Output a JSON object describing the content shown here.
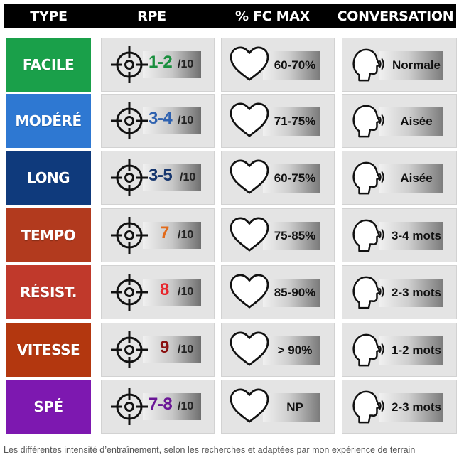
{
  "header": {
    "type": "TYPE",
    "rpe": "RPE",
    "fc": "% FC MAX",
    "conversation": "CONVERSATION"
  },
  "rows": [
    {
      "type": "FACILE",
      "type_color": "#1aa04a",
      "rpe": "1-2",
      "rpe_color": "#1a8f3e",
      "den": "/10",
      "fc": "60-70%",
      "conv": "Normale"
    },
    {
      "type": "MODÉRÉ",
      "type_color": "#2e78d2",
      "rpe": "3-4",
      "rpe_color": "#2f62b0",
      "den": "/10",
      "fc": "71-75%",
      "conv": "Aisée"
    },
    {
      "type": "LONG",
      "type_color": "#0f3a7c",
      "rpe": "3-5",
      "rpe_color": "#16366e",
      "den": "/10",
      "fc": "60-75%",
      "conv": "Aisée"
    },
    {
      "type": "TEMPO",
      "type_color": "#b23a1e",
      "rpe": "7",
      "rpe_color": "#e26a1a",
      "den": "/10",
      "fc": "75-85%",
      "conv": "3-4 mots"
    },
    {
      "type": "RÉSIST.",
      "type_color": "#c0392b",
      "rpe": "8",
      "rpe_color": "#e8262c",
      "den": "/10",
      "fc": "85-90%",
      "conv": "2-3 mots"
    },
    {
      "type": "VITESSE",
      "type_color": "#b3370f",
      "rpe": "9",
      "rpe_color": "#8a1010",
      "den": "/10",
      "fc": "> 90%",
      "conv": "1-2 mots"
    },
    {
      "type": "SPÉ",
      "type_color": "#7d18b0",
      "rpe": "7-8",
      "rpe_color": "#6a1696",
      "den": "/10",
      "fc": "NP",
      "conv": "2-3 mots"
    }
  ],
  "caption": "Les différentes intensité d’entraînement, selon les recherches et adaptées par mon expérience de terrain"
}
